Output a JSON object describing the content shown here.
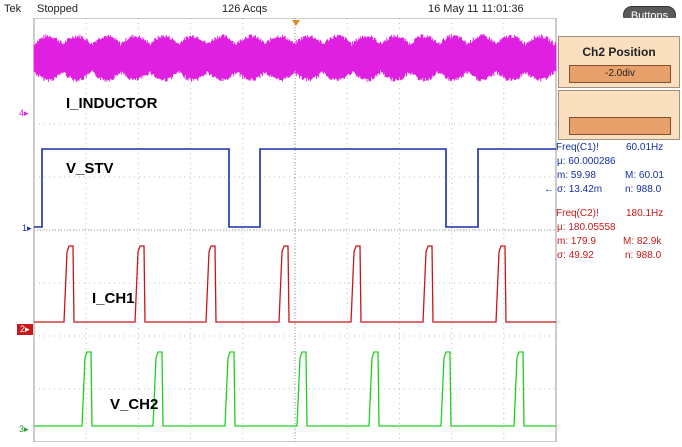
{
  "header": {
    "brand": "Tek",
    "status": "Stopped",
    "acqs": "126 Acqs",
    "datetime": "16 May 11 11:01:36",
    "buttons_label": "Buttons"
  },
  "menu": {
    "ch2_position_title": "Ch2 Position",
    "ch2_position_value": "-2.0div"
  },
  "traces": {
    "inductor": {
      "label": "I_INDUCTOR",
      "marker": "4",
      "color": "#e020e0"
    },
    "stv": {
      "label": "V_STV",
      "marker": "1",
      "color": "#1a2ea8"
    },
    "ch1": {
      "label": "I_CH1",
      "marker": "2",
      "color": "#c81818"
    },
    "ch2": {
      "label": "V_CH2",
      "marker": "3",
      "color": "#20d020"
    }
  },
  "measurements": {
    "c1": {
      "title": "Freq(C1)!",
      "value": "60.01Hz",
      "mean": "μ: 60.000286",
      "min": "m: 59.98",
      "max": "M: 60.01",
      "sigma": "σ: 13.42m",
      "n": "n: 988.0"
    },
    "c2": {
      "title": "Freq(C2)!",
      "value": "180.1Hz",
      "mean": "μ: 180.05558",
      "min": "m: 179.9",
      "max": "M: 82.9k",
      "sigma": "σ: 49.92",
      "n": "n: 988.0"
    }
  }
}
